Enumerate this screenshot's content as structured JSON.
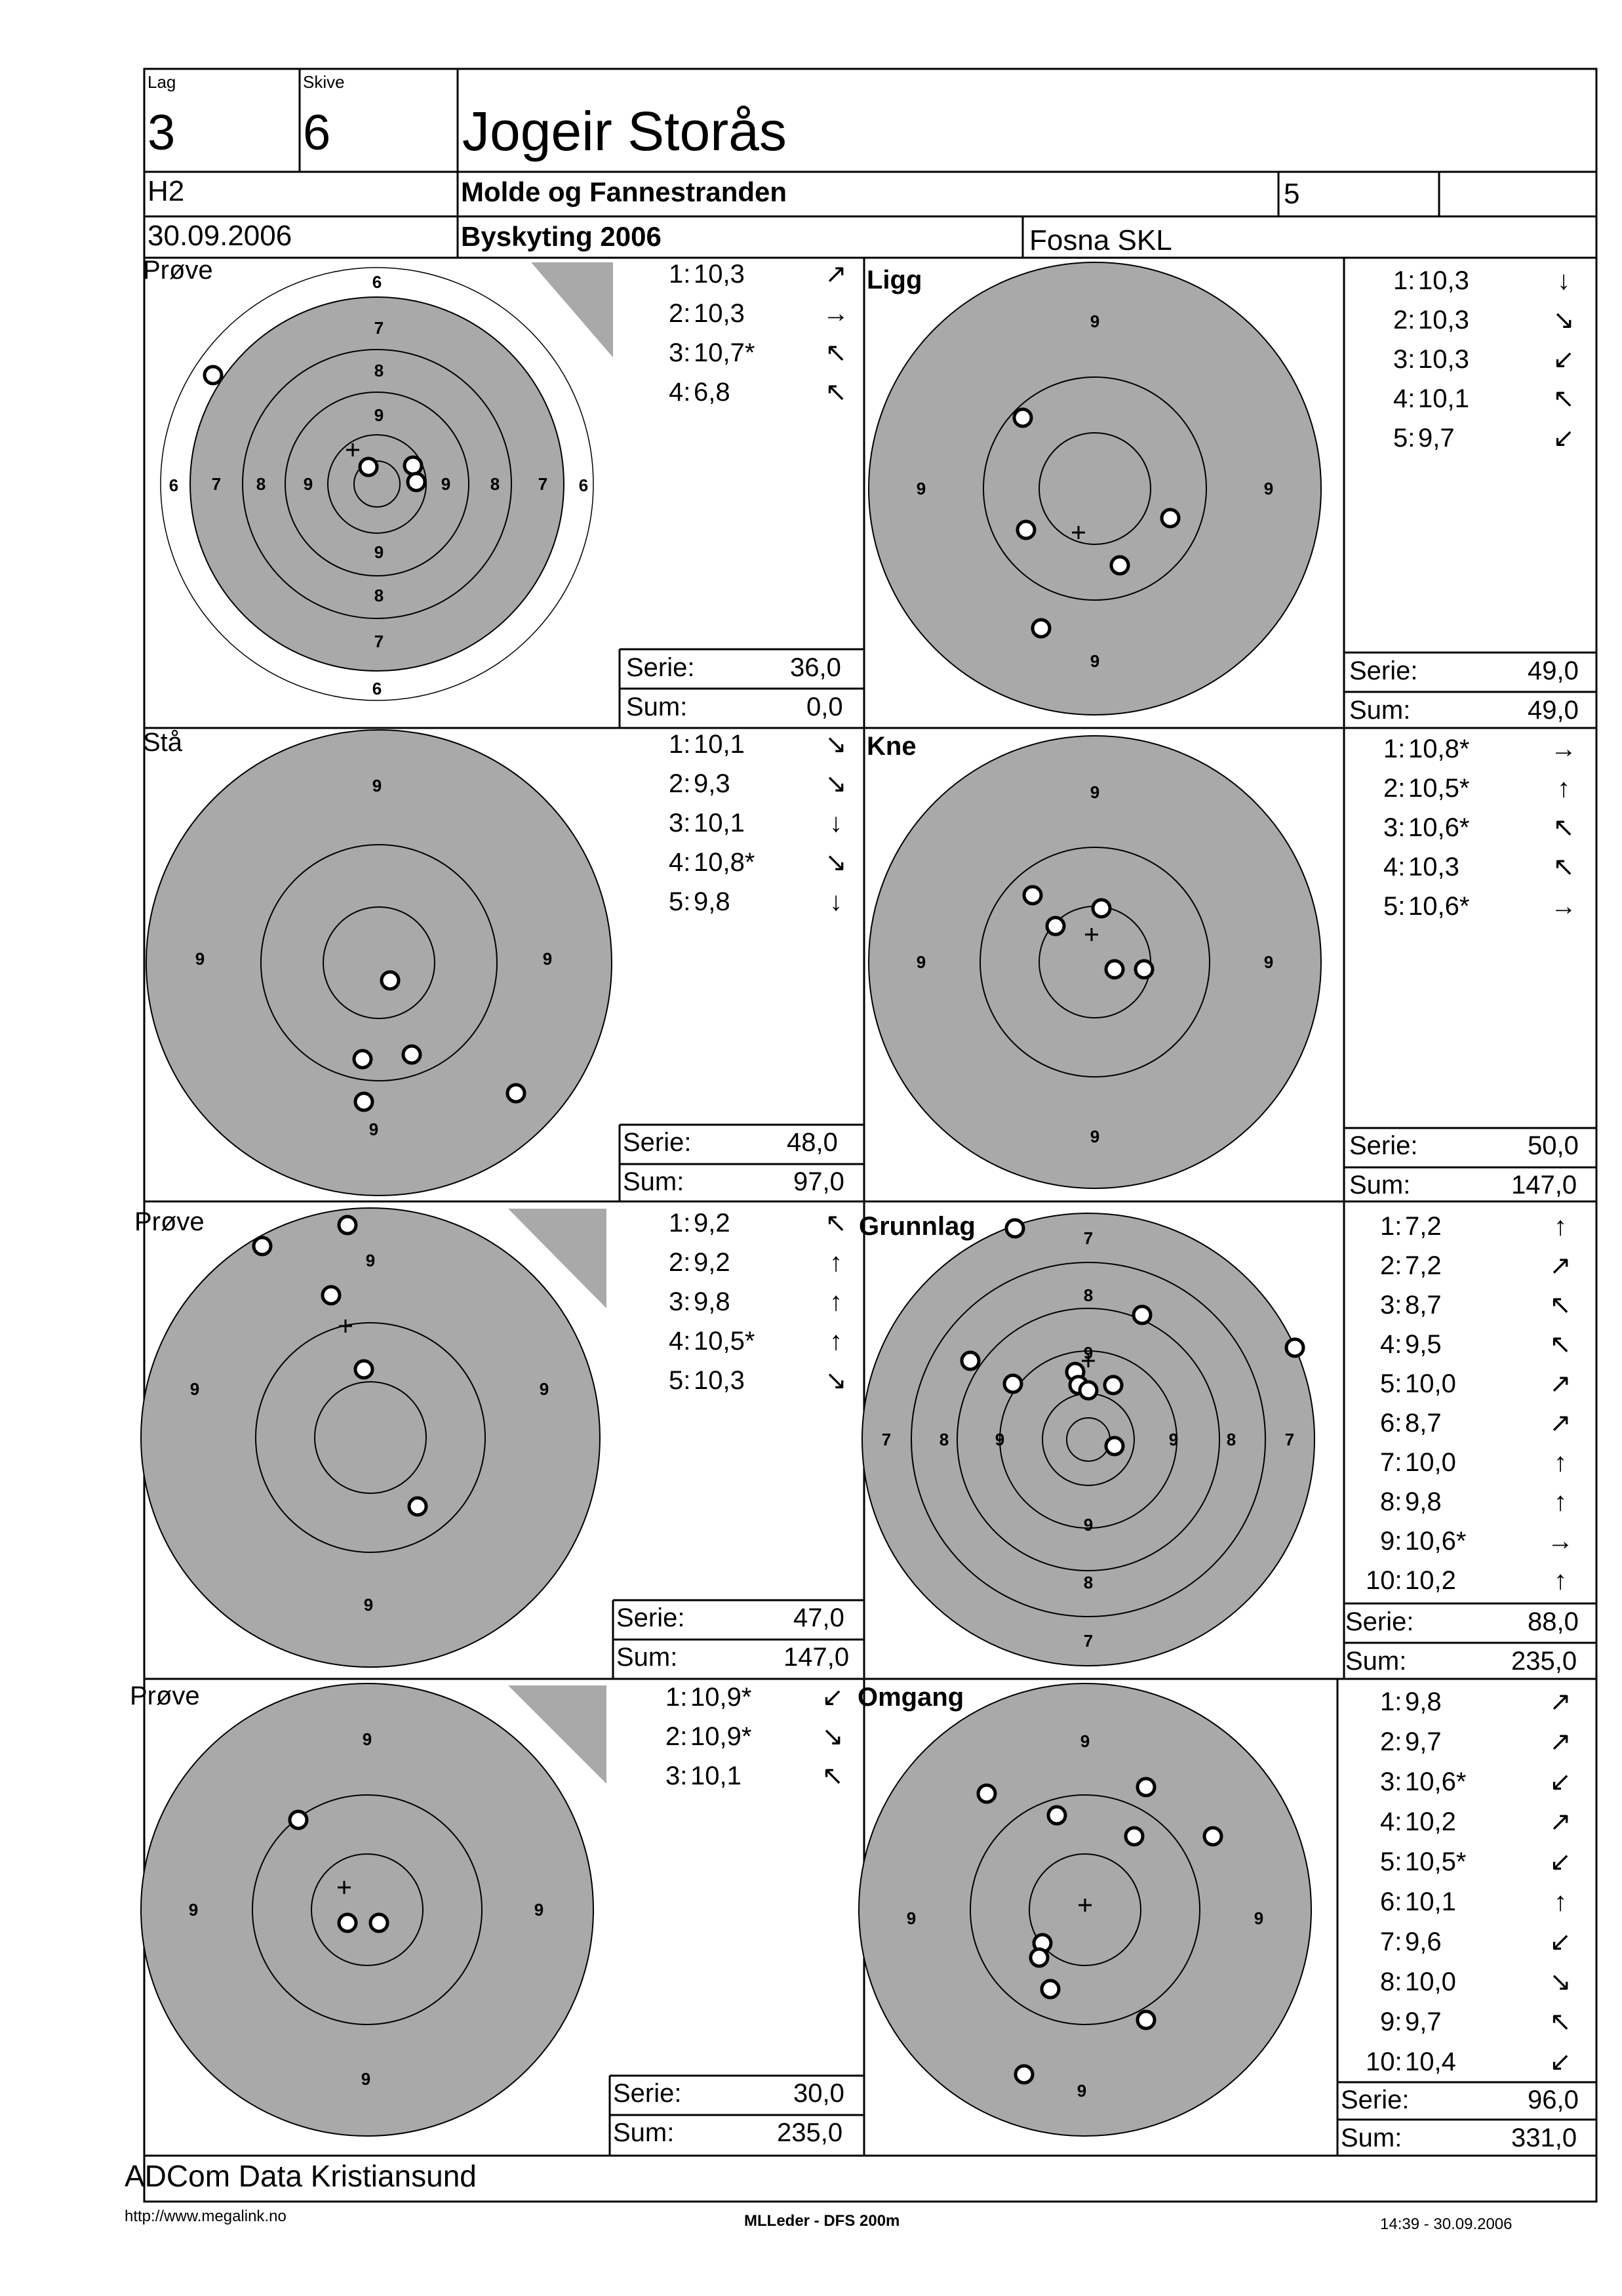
{
  "header": {
    "lag_label": "Lag",
    "lag": "3",
    "skive_label": "Skive",
    "skive": "6",
    "name": "Jogeir Storås",
    "klasse": "H2",
    "club": "Molde og Fannestranden",
    "field5": "5",
    "date": "30.09.2006",
    "event": "Byskyting 2006",
    "range": "Fosna SKL"
  },
  "labels": {
    "serie": "Serie:",
    "sum": "Sum:"
  },
  "panels": [
    {
      "title": "Prøve",
      "shots": [
        {
          "s": "1:",
          "v": "10,3",
          "a": "↗"
        },
        {
          "s": "2:",
          "v": "10,3",
          "a": "→"
        },
        {
          "s": "3:",
          "v": "10,7*",
          "a": "↖"
        },
        {
          "s": "4:",
          "v": "6,8",
          "a": "↖"
        }
      ],
      "serie": "36,0",
      "sum": "0,0"
    },
    {
      "title": "Ligg",
      "shots": [
        {
          "s": "1:",
          "v": "10,3",
          "a": "↓"
        },
        {
          "s": "2:",
          "v": "10,3",
          "a": "↘"
        },
        {
          "s": "3:",
          "v": "10,3",
          "a": "↙"
        },
        {
          "s": "4:",
          "v": "10,1",
          "a": "↖"
        },
        {
          "s": "5:",
          "v": "9,7",
          "a": "↙"
        }
      ],
      "serie": "49,0",
      "sum": "49,0"
    },
    {
      "title": "Stå",
      "shots": [
        {
          "s": "1:",
          "v": "10,1",
          "a": "↘"
        },
        {
          "s": "2:",
          "v": "9,3",
          "a": "↘"
        },
        {
          "s": "3:",
          "v": "10,1",
          "a": "↓"
        },
        {
          "s": "4:",
          "v": "10,8*",
          "a": "↘"
        },
        {
          "s": "5:",
          "v": "9,8",
          "a": "↓"
        }
      ],
      "serie": "48,0",
      "sum": "97,0"
    },
    {
      "title": "Kne",
      "shots": [
        {
          "s": "1:",
          "v": "10,8*",
          "a": "→"
        },
        {
          "s": "2:",
          "v": "10,5*",
          "a": "↑"
        },
        {
          "s": "3:",
          "v": "10,6*",
          "a": "↖"
        },
        {
          "s": "4:",
          "v": "10,3",
          "a": "↖"
        },
        {
          "s": "5:",
          "v": "10,6*",
          "a": "→"
        }
      ],
      "serie": "50,0",
      "sum": "147,0"
    },
    {
      "title": "Prøve",
      "shots": [
        {
          "s": "1:",
          "v": "9,2",
          "a": "↖"
        },
        {
          "s": "2:",
          "v": "9,2",
          "a": "↑"
        },
        {
          "s": "3:",
          "v": "9,8",
          "a": "↑"
        },
        {
          "s": "4:",
          "v": "10,5*",
          "a": "↑"
        },
        {
          "s": "5:",
          "v": "10,3",
          "a": "↘"
        }
      ],
      "serie": "47,0",
      "sum": "147,0"
    },
    {
      "title": "Grunnlag",
      "shots": [
        {
          "s": "1:",
          "v": "7,2",
          "a": "↑"
        },
        {
          "s": "2:",
          "v": "7,2",
          "a": "↗"
        },
        {
          "s": "3:",
          "v": "8,7",
          "a": "↖"
        },
        {
          "s": "4:",
          "v": "9,5",
          "a": "↖"
        },
        {
          "s": "5:",
          "v": "10,0",
          "a": "↗"
        },
        {
          "s": "6:",
          "v": "8,7",
          "a": "↗"
        },
        {
          "s": "7:",
          "v": "10,0",
          "a": "↑"
        },
        {
          "s": "8:",
          "v": "9,8",
          "a": "↑"
        },
        {
          "s": "9:",
          "v": "10,6*",
          "a": "→"
        },
        {
          "s": "10:",
          "v": "10,2",
          "a": "↑"
        }
      ],
      "serie": "88,0",
      "sum": "235,0"
    },
    {
      "title": "Prøve",
      "shots": [
        {
          "s": "1:",
          "v": "10,9*",
          "a": "↙"
        },
        {
          "s": "2:",
          "v": "10,9*",
          "a": "↘"
        },
        {
          "s": "3:",
          "v": "10,1",
          "a": "↖"
        }
      ],
      "serie": "30,0",
      "sum": "235,0"
    },
    {
      "title": "Omgang",
      "shots": [
        {
          "s": "1:",
          "v": "9,8",
          "a": "↗"
        },
        {
          "s": "2:",
          "v": "9,7",
          "a": "↗"
        },
        {
          "s": "3:",
          "v": "10,6*",
          "a": "↙"
        },
        {
          "s": "4:",
          "v": "10,2",
          "a": "↗"
        },
        {
          "s": "5:",
          "v": "10,5*",
          "a": "↙"
        },
        {
          "s": "6:",
          "v": "10,1",
          "a": "↑"
        },
        {
          "s": "7:",
          "v": "9,6",
          "a": "↙"
        },
        {
          "s": "8:",
          "v": "10,0",
          "a": "↘"
        },
        {
          "s": "9:",
          "v": "9,7",
          "a": "↖"
        },
        {
          "s": "10:",
          "v": "10,4",
          "a": "↙"
        }
      ],
      "serie": "96,0",
      "sum": "331,0"
    }
  ],
  "footer": {
    "company": "ADCom Data Kristiansund",
    "url": "http://www.megalink.no",
    "software": "MLLeder - DFS 200m",
    "timestamp": "14:39 - 30.09.2006"
  },
  "colors": {
    "target_fill": "#a9a9a9",
    "line": "#000000",
    "paper": "#ffffff"
  }
}
